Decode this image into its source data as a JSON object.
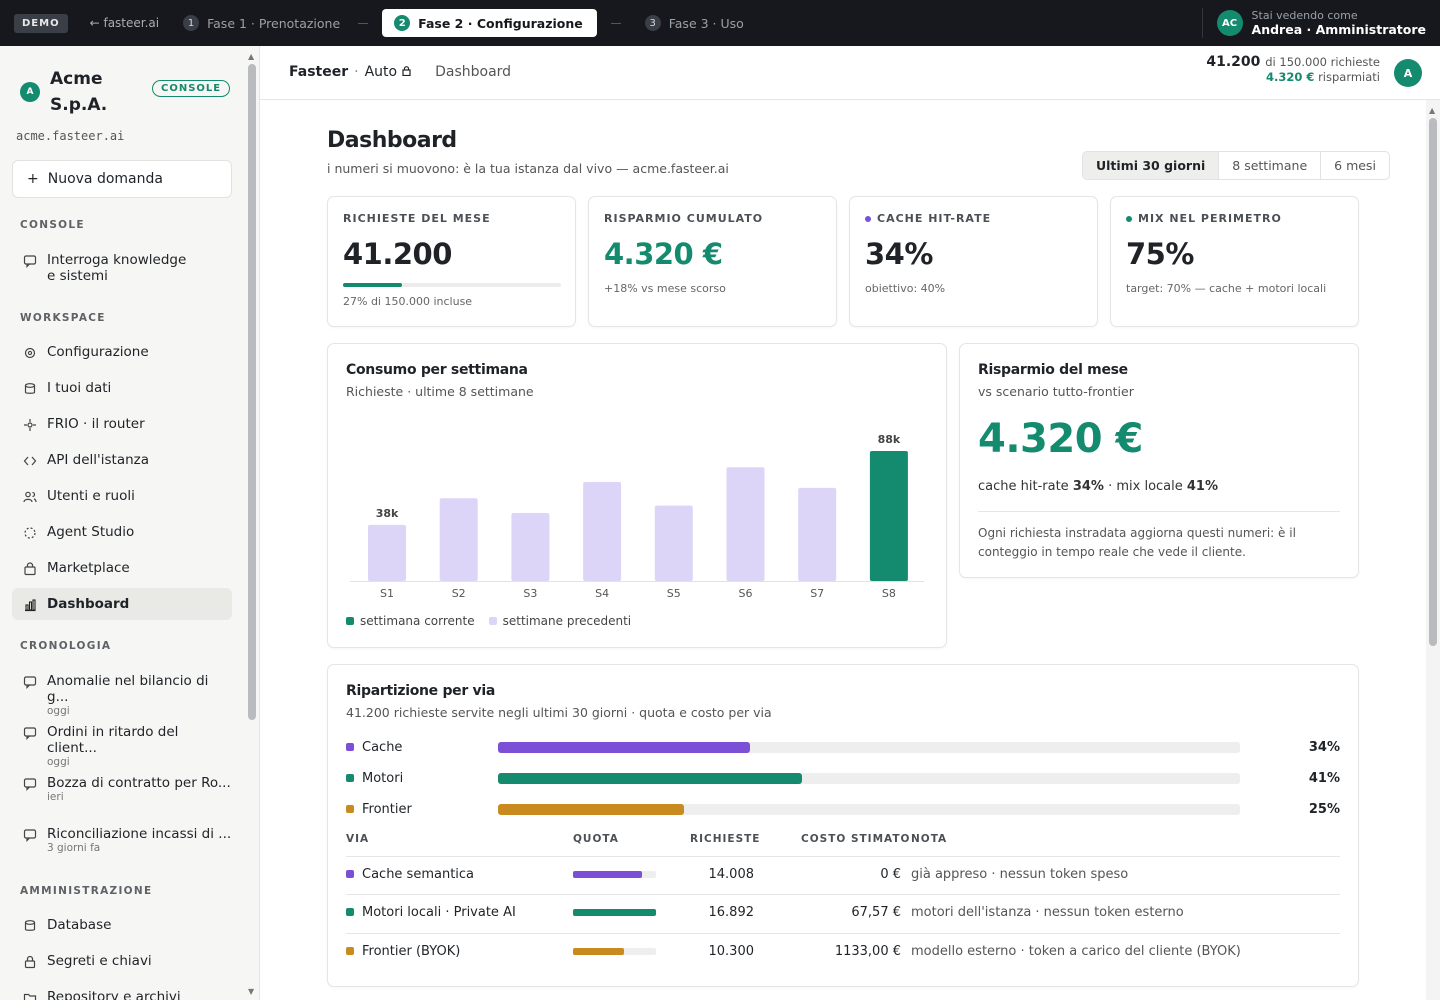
{
  "topbar": {
    "demo": "DEMO",
    "back": "← fasteer.ai",
    "steps": [
      {
        "num": "1",
        "label": "Fase 1 · Prenotazione"
      },
      {
        "num": "2",
        "label": "Fase 2 · Configurazione"
      },
      {
        "num": "3",
        "label": "Fase 3 · Uso"
      }
    ],
    "viewer_label": "Stai vedendo come",
    "viewer_name": "Andrea · Amministratore",
    "viewer_initials": "AC"
  },
  "sidebar": {
    "org_initial": "A",
    "org_name": "Acme S.p.A.",
    "badge": "CONSOLE",
    "domain": "acme.fasteer.ai",
    "new_button": "Nuova domanda",
    "section_console": "CONSOLE",
    "console_items": [
      {
        "label": "Interroga knowledge e sistemi",
        "icon": "chat-icon"
      }
    ],
    "section_workspace": "WORKSPACE",
    "workspace_items": [
      {
        "label": "Configurazione",
        "icon": "gear-icon"
      },
      {
        "label": "I tuoi dati",
        "icon": "database-icon"
      },
      {
        "label": "FRIO · il router",
        "icon": "router-icon"
      },
      {
        "label": "API dell'istanza",
        "icon": "code-icon"
      },
      {
        "label": "Utenti e ruoli",
        "icon": "users-icon"
      },
      {
        "label": "Agent Studio",
        "icon": "sparkle-icon"
      },
      {
        "label": "Marketplace",
        "icon": "bag-icon"
      },
      {
        "label": "Dashboard",
        "icon": "chart-icon"
      }
    ],
    "section_history": "CRONOLOGIA",
    "history_items": [
      {
        "label": "Anomalie nel bilancio di g...",
        "time": "oggi"
      },
      {
        "label": "Ordini in ritardo del client...",
        "time": "oggi"
      },
      {
        "label": "Bozza di contratto per Ro...",
        "time": "ieri"
      },
      {
        "label": "Riconciliazione incassi di ...",
        "time": "3 giorni fa"
      }
    ],
    "section_admin": "AMMINISTRAZIONE",
    "admin_items": [
      {
        "label": "Database",
        "icon": "database-icon"
      },
      {
        "label": "Segreti e chiavi",
        "icon": "lock-icon"
      },
      {
        "label": "Repository e archivi",
        "icon": "folder-icon"
      }
    ]
  },
  "header": {
    "brand": "Fasteer",
    "mode": "Auto",
    "page": "Dashboard",
    "usage_main": "41.200",
    "usage_rest": "di 150.000 richieste",
    "saved_value": "4.320 €",
    "saved_label": "risparmiati",
    "avatar": "A"
  },
  "main": {
    "title": "Dashboard",
    "subtitle": "i numeri si muovono: è la tua istanza dal vivo — acme.fasteer.ai",
    "ranges": [
      "Ultimi 30 giorni",
      "8 settimane",
      "6 mesi"
    ],
    "kpis": [
      {
        "label": "RICHIESTE DEL MESE",
        "value": "41.200",
        "note": "27% di 150.000 incluse",
        "progress": 0.27
      },
      {
        "label": "RISPARMIO CUMULATO",
        "value": "4.320 €",
        "note": "+18% vs mese scorso"
      },
      {
        "label": "CACHE HIT-RATE",
        "value": "34%",
        "note": "obiettivo: 40%",
        "dot": "#7b4fd6"
      },
      {
        "label": "MIX NEL PERIMETRO",
        "value": "75%",
        "note": "target: 70% — cache + motori locali",
        "dot": "#148a6e"
      }
    ],
    "weekly": {
      "title": "Consumo per settimana",
      "subtitle": "Richieste · ultime 8 settimane",
      "legend_current": "settimana corrente",
      "legend_previous": "settimane precedenti"
    },
    "savings": {
      "title": "Risparmio del mese",
      "subtitle": "vs scenario tutto-frontier",
      "value": "4.320 €",
      "line_prefix": "cache hit-rate",
      "cache": "34%",
      "line_mid": "· mix locale",
      "local": "41%",
      "note": "Ogni richiesta instradata aggiorna questi numeri: è il conteggio in tempo reale che vede il cliente."
    },
    "breakdown": {
      "title": "Ripartizione per via",
      "subtitle": "41.200 richieste servite negli ultimi 30 giorni · quota e costo per via",
      "rows": [
        {
          "name": "Cache",
          "pct": "34%",
          "value": 34,
          "color": "#7b4fd6"
        },
        {
          "name": "Motori",
          "pct": "41%",
          "value": 41,
          "color": "#148a6e"
        },
        {
          "name": "Frontier",
          "pct": "25%",
          "value": 25,
          "color": "#c98a1f"
        }
      ],
      "headers": [
        "VIA",
        "QUOTA",
        "RICHIESTE",
        "COSTO STIMATO",
        "NOTA"
      ],
      "table": [
        {
          "via": "Cache semantica",
          "share": 0.83,
          "requests": "14.008",
          "cost": "0 €",
          "note": "già appreso · nessun token speso",
          "color": "#7b4fd6"
        },
        {
          "via": "Motori locali · Private AI",
          "share": 1.0,
          "requests": "16.892",
          "cost": "67,57 €",
          "note": "motori dell'istanza · nessun token esterno",
          "color": "#148a6e"
        },
        {
          "via": "Frontier (BYOK)",
          "share": 0.61,
          "requests": "10.300",
          "cost": "1133,00 €",
          "note": "modello esterno · token a carico del cliente (BYOK)",
          "color": "#c98a1f"
        }
      ]
    }
  },
  "chart_data": {
    "type": "bar",
    "title": "Consumo per settimana",
    "subtitle": "Richieste · ultime 8 settimane",
    "categories": [
      "S1",
      "S2",
      "S3",
      "S4",
      "S5",
      "S6",
      "S7",
      "S8"
    ],
    "values": [
      38,
      56,
      46,
      67,
      51,
      77,
      63,
      88
    ],
    "unit": "k",
    "data_labels": [
      "38k",
      "",
      "",
      "",
      "",
      "",
      "",
      "88k"
    ],
    "series": [
      {
        "name": "settimana corrente",
        "color": "#148a6e"
      },
      {
        "name": "settimane precedenti",
        "color": "#dcd5f7"
      }
    ],
    "highlight_index": 7,
    "grid": false,
    "legend_placement": "bottom-left"
  }
}
